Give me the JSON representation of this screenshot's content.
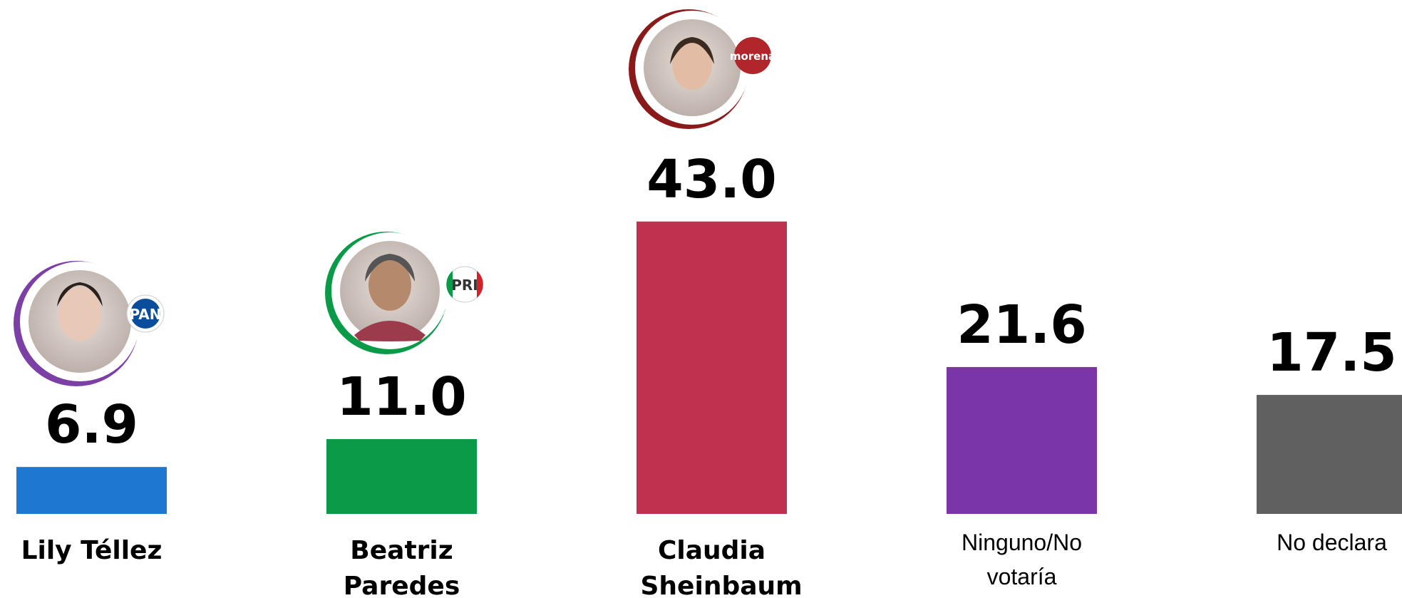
{
  "chart_data": {
    "type": "bar",
    "categories": [
      "Lily Téllez",
      "Beatriz Paredes",
      "Claudia Sheinbaum",
      "Ninguno/No votaría",
      "No declara"
    ],
    "values": [
      6.9,
      11.0,
      43.0,
      21.6,
      17.5
    ],
    "value_labels": [
      "6.9",
      "11.0",
      "43.0",
      "21.6",
      "17.5"
    ],
    "colors": [
      "#1e78d2",
      "#0a9a48",
      "#c0304f",
      "#7a35a8",
      "#606060"
    ],
    "category_bold": [
      true,
      true,
      true,
      false,
      false
    ],
    "ylim": [
      0,
      50
    ]
  },
  "badges": [
    "PAN",
    "PRI",
    "morena"
  ]
}
